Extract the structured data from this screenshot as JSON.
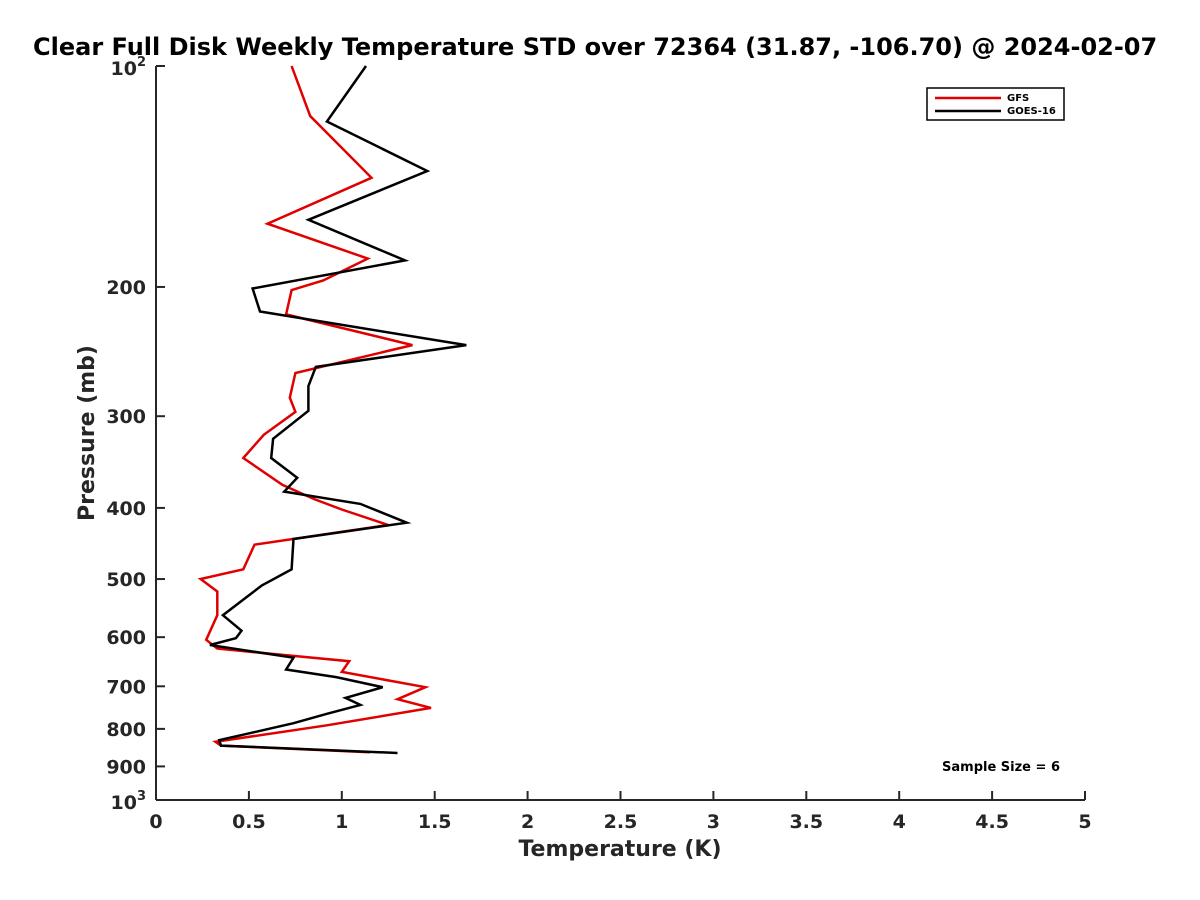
{
  "chart_data": {
    "type": "line",
    "title": "Clear Full Disk Weekly Temperature STD over 72364 (31.87, -106.70) @ 2024-02-07",
    "xlabel": "Temperature (K)",
    "ylabel": "Pressure (mb)",
    "xlim": [
      0,
      5
    ],
    "ylim": [
      100,
      1000
    ],
    "yscale": "log",
    "y_reversed": true,
    "grid": false,
    "legend_position": "top-right",
    "x_ticks": [
      0,
      0.5,
      1,
      1.5,
      2,
      2.5,
      3,
      3.5,
      4,
      4.5,
      5
    ],
    "x_tick_labels": [
      "0",
      "0.5",
      "1",
      "1.5",
      "2",
      "2.5",
      "3",
      "3.5",
      "4",
      "4.5",
      "5"
    ],
    "y_ticks": [
      {
        "value": 100,
        "base": "10",
        "exp": "2"
      },
      {
        "value": 200,
        "label": "200"
      },
      {
        "value": 300,
        "label": "300"
      },
      {
        "value": 400,
        "label": "400"
      },
      {
        "value": 500,
        "label": "500"
      },
      {
        "value": 600,
        "label": "600"
      },
      {
        "value": 700,
        "label": "700"
      },
      {
        "value": 800,
        "label": "800"
      },
      {
        "value": 900,
        "label": "900"
      },
      {
        "value": 1000,
        "base": "10",
        "exp": "3"
      }
    ],
    "annotation": "Sample Size = 6",
    "series": [
      {
        "name": "GFS",
        "color": "#e00000",
        "points": [
          [
            0.73,
            100
          ],
          [
            0.83,
            117
          ],
          [
            1.16,
            142
          ],
          [
            0.6,
            164
          ],
          [
            1.14,
            183
          ],
          [
            0.9,
            196
          ],
          [
            0.73,
            202
          ],
          [
            0.7,
            218
          ],
          [
            1.38,
            240
          ],
          [
            0.75,
            262
          ],
          [
            0.72,
            283
          ],
          [
            0.75,
            296
          ],
          [
            0.58,
            318
          ],
          [
            0.47,
            342
          ],
          [
            0.68,
            372
          ],
          [
            0.85,
            389
          ],
          [
            1.0,
            402
          ],
          [
            1.25,
            422
          ],
          [
            0.53,
            449
          ],
          [
            0.47,
            485
          ],
          [
            0.24,
            500
          ],
          [
            0.33,
            520
          ],
          [
            0.33,
            560
          ],
          [
            0.27,
            605
          ],
          [
            0.33,
            622
          ],
          [
            1.04,
            647
          ],
          [
            1.0,
            669
          ],
          [
            1.45,
            702
          ],
          [
            1.3,
            729
          ],
          [
            1.48,
            749
          ],
          [
            0.92,
            791
          ],
          [
            0.32,
            833
          ],
          [
            0.35,
            843
          ],
          [
            1.15,
            861
          ]
        ]
      },
      {
        "name": "GOES-16",
        "color": "#000000",
        "points": [
          [
            1.13,
            100
          ],
          [
            0.92,
            119
          ],
          [
            1.46,
            139
          ],
          [
            0.82,
            162
          ],
          [
            1.34,
            184
          ],
          [
            0.52,
            201
          ],
          [
            0.56,
            216
          ],
          [
            1.67,
            240
          ],
          [
            0.86,
            257
          ],
          [
            0.82,
            273
          ],
          [
            0.82,
            295
          ],
          [
            0.63,
            322
          ],
          [
            0.62,
            342
          ],
          [
            0.76,
            364
          ],
          [
            0.69,
            380
          ],
          [
            1.1,
            395
          ],
          [
            1.35,
            419
          ],
          [
            0.74,
            441
          ],
          [
            0.73,
            485
          ],
          [
            0.57,
            510
          ],
          [
            0.36,
            560
          ],
          [
            0.46,
            588
          ],
          [
            0.43,
            602
          ],
          [
            0.29,
            615
          ],
          [
            0.74,
            640
          ],
          [
            0.7,
            664
          ],
          [
            0.97,
            680
          ],
          [
            1.22,
            702
          ],
          [
            1.02,
            726
          ],
          [
            1.1,
            742
          ],
          [
            0.92,
            763
          ],
          [
            0.74,
            786
          ],
          [
            0.34,
            829
          ],
          [
            0.35,
            843
          ],
          [
            1.3,
            863
          ]
        ]
      }
    ]
  }
}
